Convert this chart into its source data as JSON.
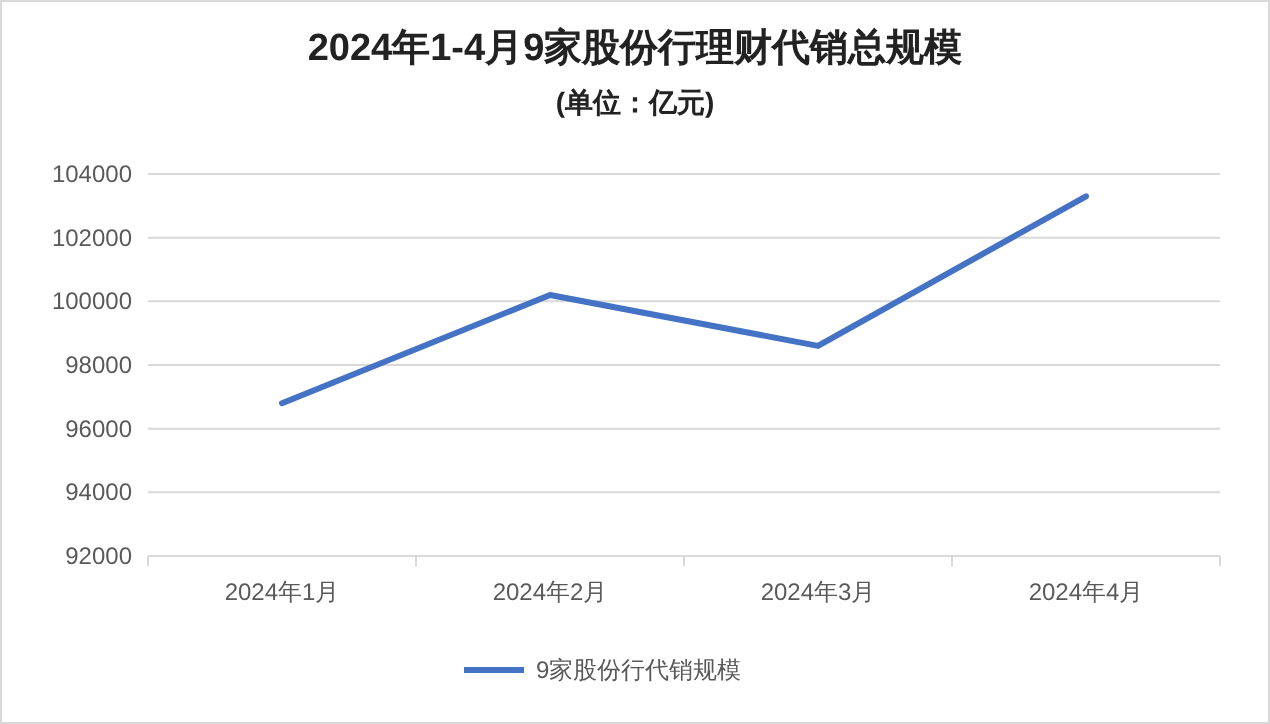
{
  "chart_data": {
    "type": "line",
    "title": "2024年1-4月9家股份行理财代销总规模",
    "subtitle": "(单位：亿元)",
    "categories": [
      "2024年1月",
      "2024年2月",
      "2024年3月",
      "2024年4月"
    ],
    "series": [
      {
        "name": "9家股份行代销规模",
        "color": "#4472c4",
        "values": [
          96800,
          100200,
          98600,
          103300
        ]
      }
    ],
    "ylim": [
      92000,
      104000
    ],
    "yticks": [
      92000,
      94000,
      96000,
      98000,
      100000,
      102000,
      104000
    ],
    "grid": "y",
    "legend": "bottom",
    "marker": "none",
    "line_style": "solid"
  }
}
